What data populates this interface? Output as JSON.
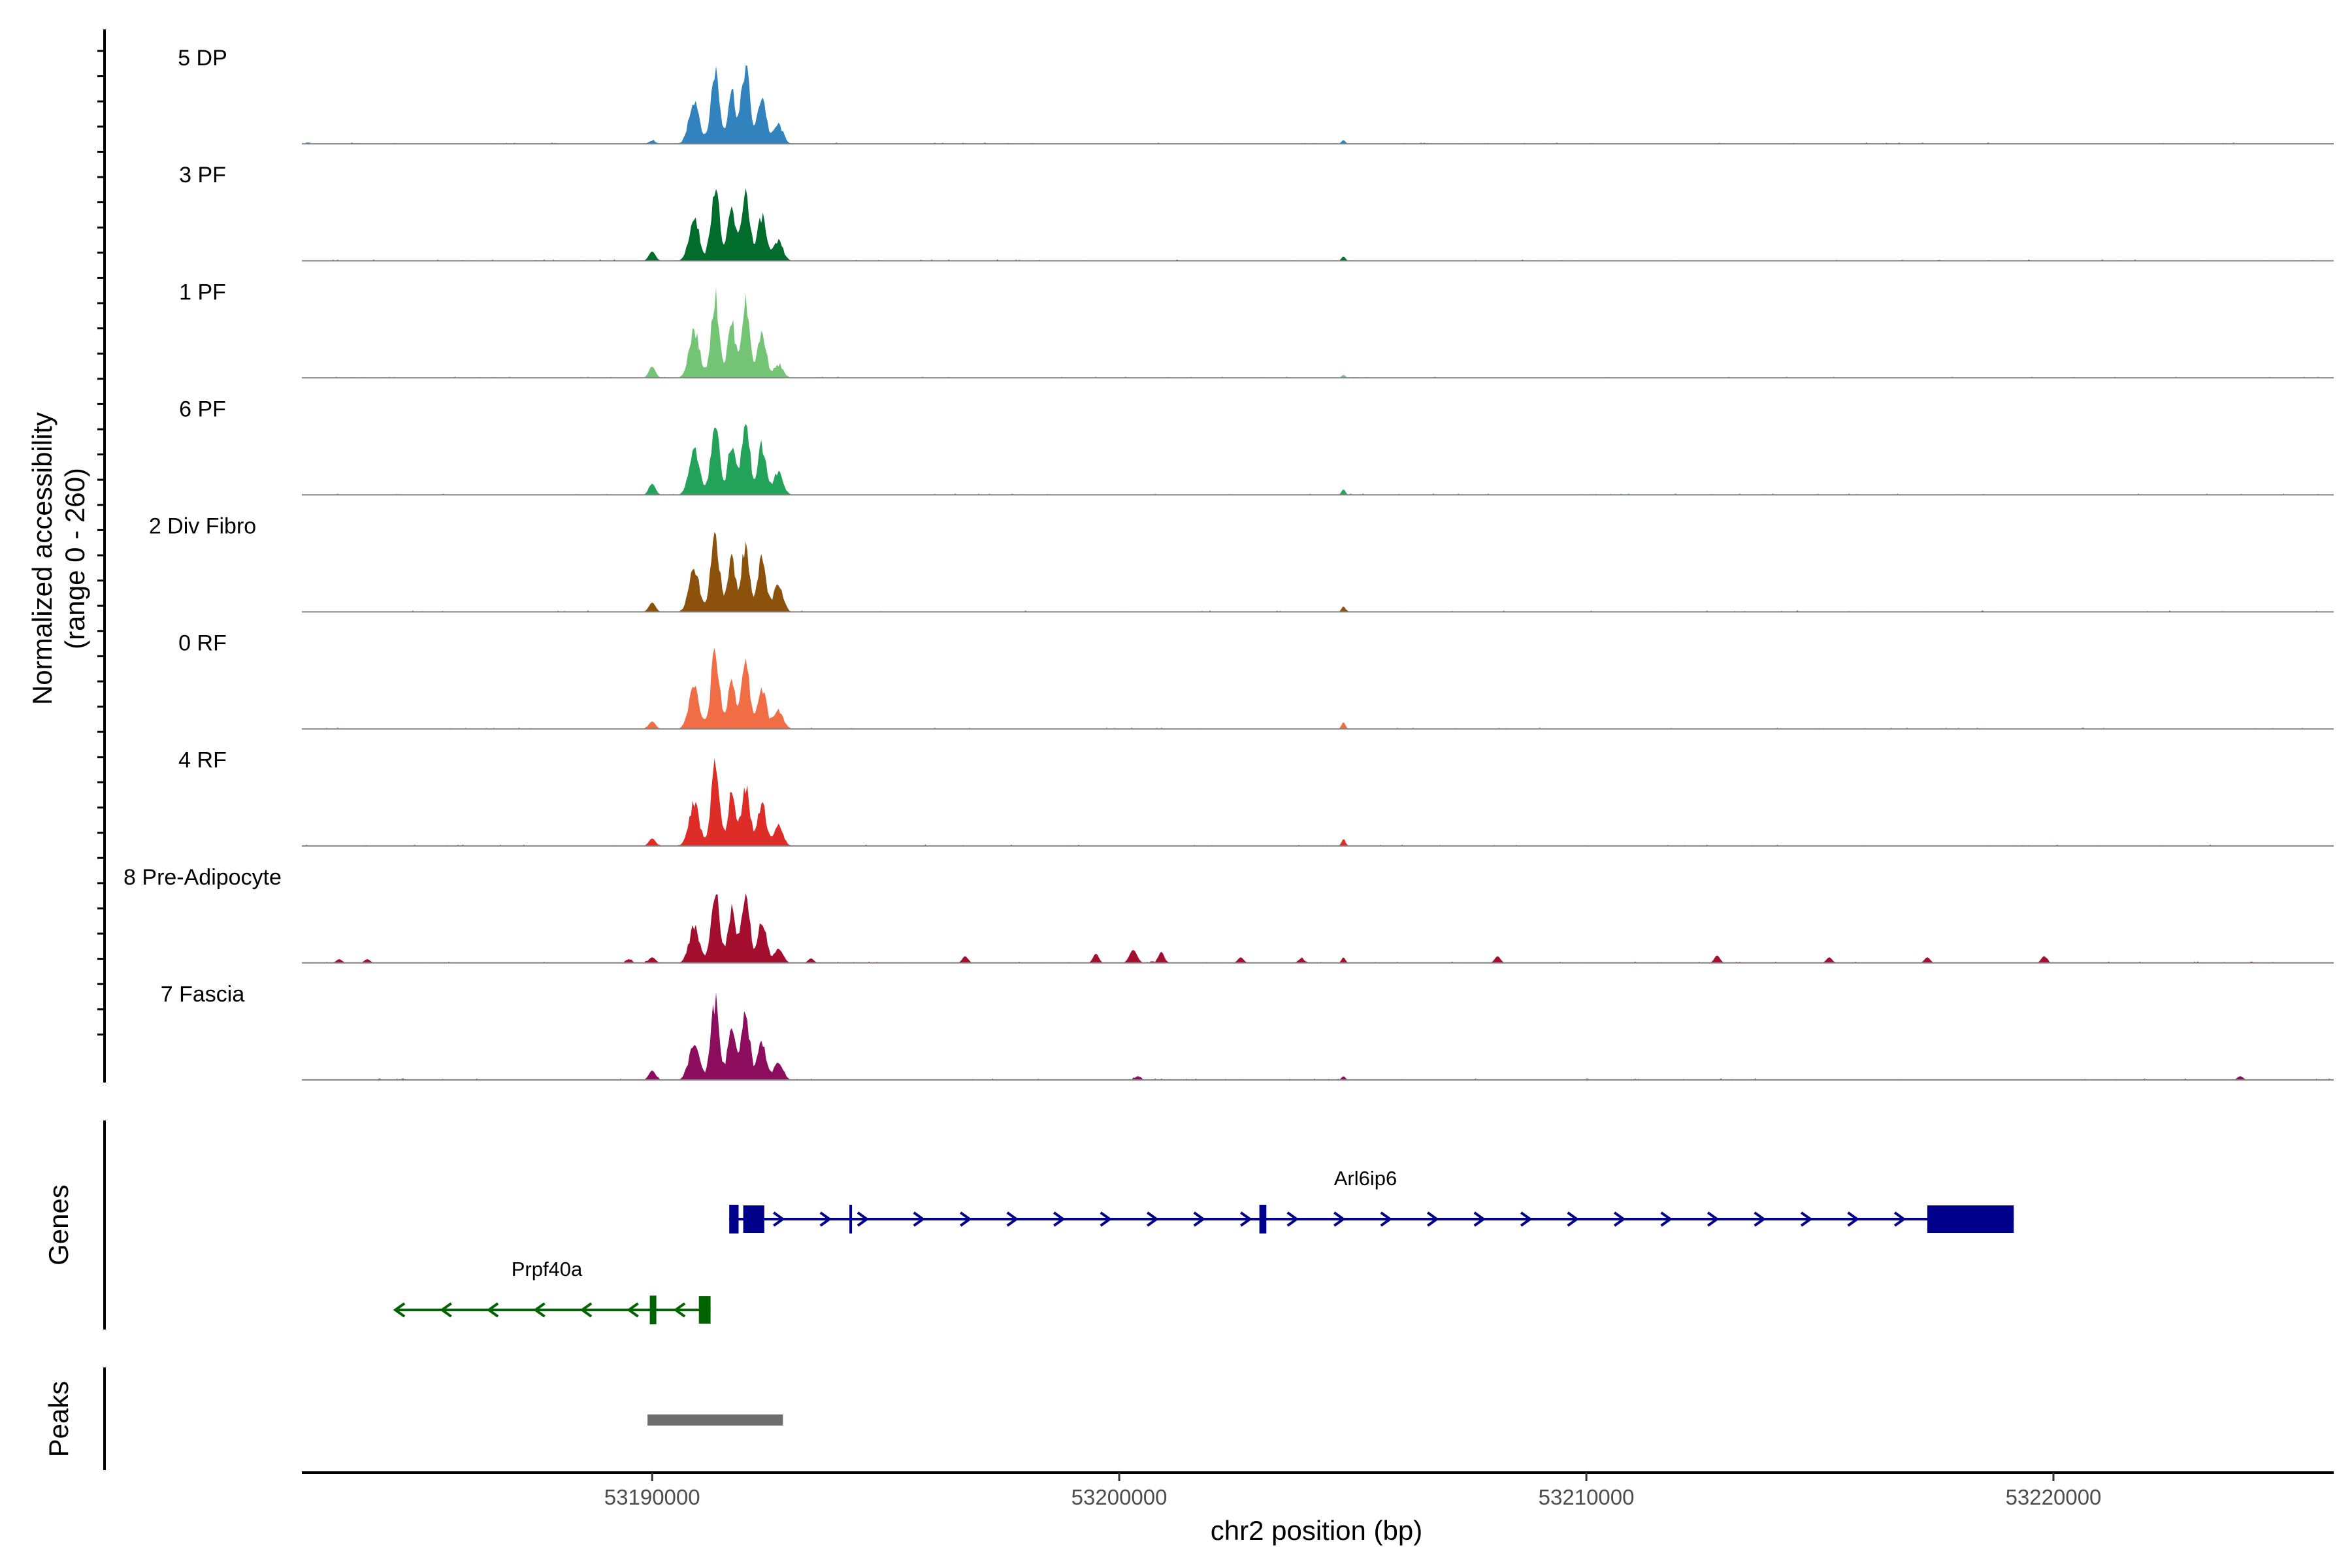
{
  "chart_data": {
    "type": "area",
    "title": "",
    "ylabel_line1": "Normalized accessibility",
    "ylabel_line2": "(range 0 - 260)",
    "y_range": [
      0,
      260
    ],
    "xlabel": "chr2 position (bp)",
    "x_range": [
      53182500,
      53226000
    ],
    "x_ticks": [
      53190000,
      53200000,
      53210000,
      53220000
    ],
    "x_tick_labels": [
      "53190000",
      "53200000",
      "53210000",
      "53220000"
    ],
    "genes_label": "Genes",
    "peaks_label": "Peaks",
    "tracks": [
      {
        "name": "5 DP",
        "color": "#3182BD",
        "peaks": [
          [
            53190000,
            8,
            70
          ],
          [
            53190900,
            140,
            110
          ],
          [
            53191350,
            230,
            90
          ],
          [
            53191700,
            170,
            80
          ],
          [
            53192000,
            240,
            90
          ],
          [
            53192350,
            150,
            90
          ],
          [
            53192700,
            60,
            100
          ],
          [
            53204800,
            10,
            40
          ]
        ]
      },
      {
        "name": "3 PF",
        "color": "#006D2C",
        "peaks": [
          [
            53190000,
            25,
            70
          ],
          [
            53190900,
            130,
            110
          ],
          [
            53191350,
            235,
            90
          ],
          [
            53191700,
            160,
            80
          ],
          [
            53192000,
            215,
            90
          ],
          [
            53192350,
            140,
            90
          ],
          [
            53192700,
            60,
            100
          ],
          [
            53204800,
            12,
            40
          ]
        ]
      },
      {
        "name": "1 PF",
        "color": "#74C476",
        "peaks": [
          [
            53190000,
            30,
            70
          ],
          [
            53190900,
            150,
            110
          ],
          [
            53191350,
            250,
            90
          ],
          [
            53191700,
            170,
            80
          ],
          [
            53192000,
            230,
            90
          ],
          [
            53192350,
            140,
            90
          ],
          [
            53192700,
            40,
            100
          ],
          [
            53204800,
            8,
            40
          ]
        ]
      },
      {
        "name": "6 PF",
        "color": "#23A25A",
        "peaks": [
          [
            53190000,
            30,
            70
          ],
          [
            53190900,
            140,
            110
          ],
          [
            53191350,
            230,
            90
          ],
          [
            53191700,
            160,
            80
          ],
          [
            53192000,
            220,
            90
          ],
          [
            53192350,
            150,
            90
          ],
          [
            53192700,
            70,
            100
          ],
          [
            53204800,
            15,
            40
          ]
        ]
      },
      {
        "name": "2 Div Fibro",
        "color": "#8C510A",
        "peaks": [
          [
            53190000,
            25,
            70
          ],
          [
            53190900,
            130,
            110
          ],
          [
            53191350,
            240,
            90
          ],
          [
            53191700,
            170,
            80
          ],
          [
            53192000,
            200,
            90
          ],
          [
            53192350,
            160,
            90
          ],
          [
            53192700,
            80,
            100
          ],
          [
            53204800,
            15,
            40
          ]
        ]
      },
      {
        "name": "0 RF",
        "color": "#F16D45",
        "peaks": [
          [
            53190000,
            20,
            70
          ],
          [
            53190900,
            130,
            110
          ],
          [
            53191350,
            240,
            90
          ],
          [
            53191700,
            160,
            80
          ],
          [
            53192000,
            200,
            90
          ],
          [
            53192350,
            130,
            90
          ],
          [
            53192700,
            60,
            100
          ],
          [
            53204800,
            18,
            40
          ]
        ]
      },
      {
        "name": "4 RF",
        "color": "#DE2D26",
        "peaks": [
          [
            53190000,
            20,
            70
          ],
          [
            53190900,
            130,
            110
          ],
          [
            53191350,
            240,
            90
          ],
          [
            53191700,
            160,
            80
          ],
          [
            53192000,
            190,
            90
          ],
          [
            53192350,
            130,
            90
          ],
          [
            53192700,
            60,
            100
          ],
          [
            53204800,
            18,
            40
          ]
        ]
      },
      {
        "name": "8 Pre-Adipocyte",
        "color": "#A50F2F",
        "peaks": [
          [
            53183300,
            10,
            60
          ],
          [
            53183900,
            10,
            60
          ],
          [
            53189500,
            10,
            60
          ],
          [
            53190000,
            15,
            70
          ],
          [
            53190900,
            110,
            110
          ],
          [
            53191350,
            240,
            90
          ],
          [
            53191700,
            160,
            80
          ],
          [
            53192000,
            200,
            90
          ],
          [
            53192350,
            130,
            90
          ],
          [
            53192700,
            40,
            100
          ],
          [
            53193400,
            12,
            60
          ],
          [
            53196700,
            18,
            60
          ],
          [
            53199500,
            25,
            60
          ],
          [
            53200300,
            35,
            80
          ],
          [
            53200900,
            30,
            60
          ],
          [
            53202600,
            15,
            60
          ],
          [
            53203900,
            12,
            60
          ],
          [
            53204800,
            15,
            40
          ],
          [
            53208100,
            18,
            60
          ],
          [
            53212800,
            20,
            60
          ],
          [
            53215200,
            15,
            60
          ],
          [
            53217300,
            15,
            60
          ],
          [
            53219800,
            18,
            60
          ]
        ]
      },
      {
        "name": "7 Fascia",
        "color": "#8C0C5E",
        "peaks": [
          [
            53190000,
            25,
            70
          ],
          [
            53190900,
            110,
            110
          ],
          [
            53191350,
            245,
            90
          ],
          [
            53191700,
            160,
            80
          ],
          [
            53192000,
            200,
            90
          ],
          [
            53192350,
            120,
            90
          ],
          [
            53192700,
            50,
            100
          ],
          [
            53200400,
            10,
            60
          ],
          [
            53204800,
            10,
            40
          ],
          [
            53224000,
            10,
            60
          ]
        ]
      }
    ],
    "genes": [
      {
        "name": "Arl6ip6",
        "color": "#00008B",
        "strand": "+",
        "start": 53191650,
        "end": 53219150,
        "exons": [
          [
            53191650,
            53191850,
            "thin"
          ],
          [
            53191950,
            53192400,
            "thick"
          ],
          [
            53194250,
            53194300,
            "line"
          ],
          [
            53203000,
            53203150,
            "thin"
          ],
          [
            53217300,
            53219150,
            "thick"
          ]
        ],
        "arrows": [
          53192700,
          53193700,
          53194500,
          53195700,
          53196700,
          53197700,
          53198700,
          53199700,
          53200700,
          53201700,
          53202700,
          53203700,
          53204700,
          53205700,
          53206700,
          53207700,
          53208700,
          53209700,
          53210700,
          53211700,
          53212700,
          53213700,
          53214700,
          53215700,
          53216700
        ]
      },
      {
        "name": "Prpf40a",
        "color": "#006400",
        "strand": "-",
        "start": 53184500,
        "end": 53191250,
        "exons": [
          [
            53189950,
            53190080,
            "thin"
          ],
          [
            53191000,
            53191250,
            "thick"
          ]
        ],
        "arrows": [
          53184600,
          53185600,
          53186600,
          53187600,
          53188600,
          53189600,
          53190600
        ]
      }
    ],
    "peaks_regions": [
      [
        53189900,
        53192800
      ]
    ]
  }
}
